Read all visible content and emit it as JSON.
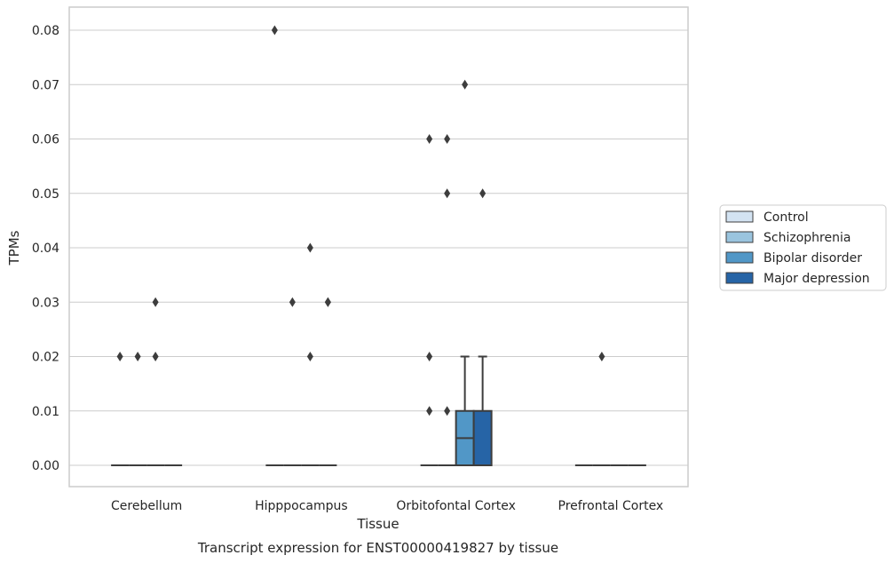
{
  "chart_data": {
    "type": "box",
    "xlabel": "Tissue",
    "ylabel": "TPMs",
    "caption": "Transcript expression for ENST00000419827 by tissue",
    "categories": [
      "Cerebellum",
      "Hipppocampus",
      "Orbitofontal Cortex",
      "Prefrontal Cortex"
    ],
    "yticks": [
      "0.00",
      "0.01",
      "0.02",
      "0.03",
      "0.04",
      "0.05",
      "0.06",
      "0.07",
      "0.08"
    ],
    "ylim": [
      -0.004,
      0.084
    ],
    "grid": true,
    "legend_position": "right",
    "series": [
      {
        "name": "Control",
        "color": "#d3e3f2",
        "boxes": [
          {
            "q1": 0,
            "median": 0,
            "q3": 0,
            "whisker_low": 0,
            "whisker_high": 0,
            "outliers": [
              0.02
            ]
          },
          {
            "q1": 0,
            "median": 0,
            "q3": 0,
            "whisker_low": 0,
            "whisker_high": 0,
            "outliers": [
              0.08
            ]
          },
          {
            "q1": 0,
            "median": 0,
            "q3": 0,
            "whisker_low": 0,
            "whisker_high": 0,
            "outliers": [
              0.06,
              0.02,
              0.01
            ]
          },
          {
            "q1": 0,
            "median": 0,
            "q3": 0,
            "whisker_low": 0,
            "whisker_high": 0,
            "outliers": []
          }
        ]
      },
      {
        "name": "Schizophrenia",
        "color": "#9ac4de",
        "boxes": [
          {
            "q1": 0,
            "median": 0,
            "q3": 0,
            "whisker_low": 0,
            "whisker_high": 0,
            "outliers": [
              0.02
            ]
          },
          {
            "q1": 0,
            "median": 0,
            "q3": 0,
            "whisker_low": 0,
            "whisker_high": 0,
            "outliers": [
              0.03
            ]
          },
          {
            "q1": 0,
            "median": 0,
            "q3": 0,
            "whisker_low": 0,
            "whisker_high": 0,
            "outliers": [
              0.06,
              0.05,
              0.01
            ]
          },
          {
            "q1": 0,
            "median": 0,
            "q3": 0,
            "whisker_low": 0,
            "whisker_high": 0,
            "outliers": [
              0.02
            ]
          }
        ]
      },
      {
        "name": "Bipolar disorder",
        "color": "#5197c7",
        "boxes": [
          {
            "q1": 0,
            "median": 0,
            "q3": 0,
            "whisker_low": 0,
            "whisker_high": 0,
            "outliers": [
              0.03,
              0.02
            ]
          },
          {
            "q1": 0,
            "median": 0,
            "q3": 0,
            "whisker_low": 0,
            "whisker_high": 0,
            "outliers": [
              0.04,
              0.02
            ]
          },
          {
            "q1": 0,
            "median": 0.005,
            "q3": 0.01,
            "whisker_low": 0,
            "whisker_high": 0.02,
            "outliers": [
              0.07
            ]
          },
          {
            "q1": 0,
            "median": 0,
            "q3": 0,
            "whisker_low": 0,
            "whisker_high": 0,
            "outliers": []
          }
        ]
      },
      {
        "name": "Major depression",
        "color": "#2664a6",
        "boxes": [
          {
            "q1": 0,
            "median": 0,
            "q3": 0,
            "whisker_low": 0,
            "whisker_high": 0,
            "outliers": []
          },
          {
            "q1": 0,
            "median": 0,
            "q3": 0,
            "whisker_low": 0,
            "whisker_high": 0,
            "outliers": [
              0.03,
              0.03
            ]
          },
          {
            "q1": 0,
            "median": 0,
            "q3": 0.01,
            "whisker_low": 0,
            "whisker_high": 0.02,
            "outliers": [
              0.05
            ]
          },
          {
            "q1": 0,
            "median": 0,
            "q3": 0,
            "whisker_low": 0,
            "whisker_high": 0,
            "outliers": []
          }
        ]
      }
    ]
  }
}
